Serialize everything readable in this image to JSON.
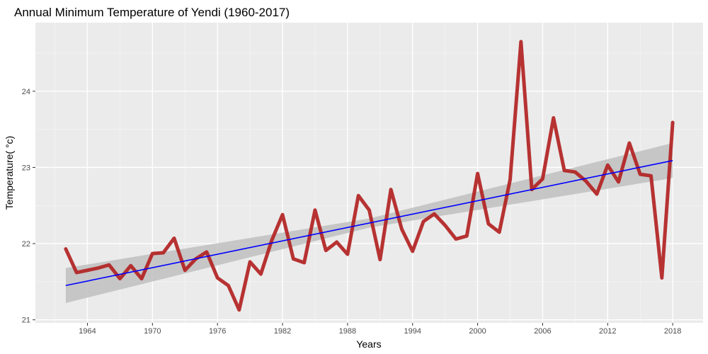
{
  "chart_data": {
    "type": "line",
    "title": "Annual Minimum Temperature  of Yendi (1960-2017)",
    "xlabel": "Years",
    "ylabel": "Temperature( °c)",
    "xlim": [
      1959.2,
      2020.8
    ],
    "ylim": [
      20.96,
      24.9
    ],
    "x_ticks": [
      1964,
      1970,
      1976,
      1982,
      1988,
      1994,
      2000,
      2006,
      2012,
      2018
    ],
    "y_ticks": [
      21,
      22,
      23,
      24
    ],
    "grid": true,
    "legend": "none",
    "colors": {
      "panel_bg": "#ebebeb",
      "grid_major": "#ffffff",
      "grid_minor": "#f5f5f5",
      "series_line": "#b22222",
      "trend_line": "#0000ff",
      "confidence_band": "#c0c0c0"
    },
    "series": [
      {
        "x": [
          1962,
          1963,
          1964,
          1965,
          1966,
          1967,
          1968,
          1969,
          1970,
          1971,
          1972,
          1973,
          1974,
          1975,
          1976,
          1977,
          1978,
          1979,
          1980,
          1981,
          1982,
          1983,
          1984,
          1985,
          1986,
          1987,
          1988,
          1989,
          1990,
          1991,
          1992,
          1993,
          1994,
          1995,
          1996,
          1997,
          1998,
          1999,
          2000,
          2001,
          2002,
          2003,
          2004,
          2005,
          2006,
          2007,
          2008,
          2009,
          2010,
          2011,
          2012,
          2013,
          2014,
          2015,
          2016,
          2017,
          2018
        ],
        "values": [
          21.93,
          21.62,
          21.65,
          21.68,
          21.72,
          21.54,
          21.71,
          21.54,
          21.87,
          21.88,
          22.07,
          21.65,
          21.8,
          21.89,
          21.55,
          21.45,
          21.13,
          21.76,
          21.6,
          22.04,
          22.38,
          21.8,
          21.75,
          22.44,
          21.91,
          22.02,
          21.86,
          22.63,
          22.44,
          21.79,
          22.71,
          22.19,
          21.9,
          22.29,
          22.39,
          22.24,
          22.06,
          22.1,
          22.92,
          22.26,
          22.15,
          22.84,
          24.65,
          22.71,
          22.85,
          23.65,
          22.96,
          22.94,
          22.82,
          22.65,
          23.03,
          22.81,
          23.32,
          22.91,
          22.89,
          21.55,
          23.59
        ]
      }
    ],
    "trend": {
      "x": [
        1962,
        2018
      ],
      "y": [
        21.45,
        23.09
      ],
      "ci_lower": [
        21.22,
        22.86
      ],
      "ci_upper": [
        21.68,
        23.32
      ],
      "ci_mid": [
        1990,
        22.27,
        22.21,
        22.33
      ]
    }
  }
}
